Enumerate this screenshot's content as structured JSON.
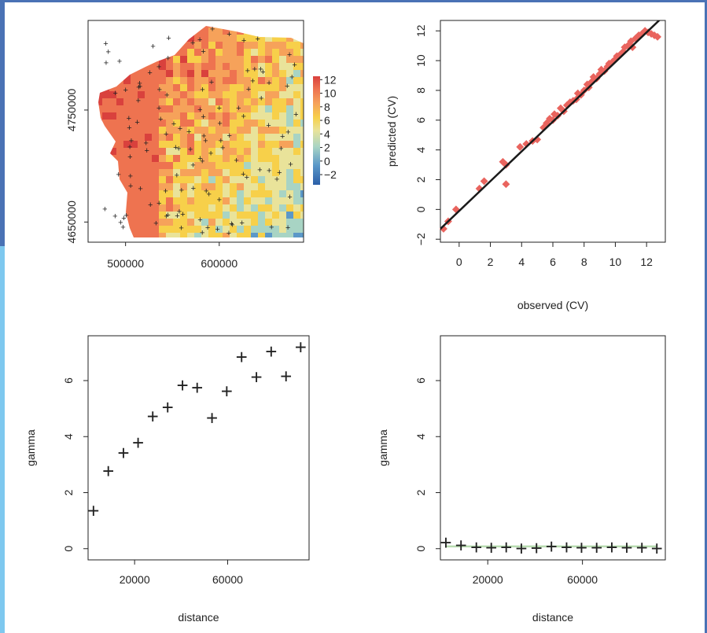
{
  "colors": {
    "window_frame": "#4a72b5",
    "frame_light": "#7ec8ef"
  },
  "chart_data": [
    {
      "type": "heatmap",
      "title": "",
      "x_ticks": [
        500000,
        600000
      ],
      "y_ticks": [
        4650000,
        4750000
      ],
      "colorbar_ticks": [
        12,
        10,
        8,
        6,
        4,
        2,
        0,
        -2
      ],
      "colorbar_range": [
        -3.5,
        12.5
      ],
      "grid": false,
      "point_marker": "+"
    },
    {
      "type": "scatter",
      "xlabel": "observed (CV)",
      "ylabel": "predicted (CV)",
      "xlim": [
        -1.2,
        13.2
      ],
      "ylim": [
        -2.2,
        12.7
      ],
      "x_ticks": [
        0,
        2,
        4,
        6,
        8,
        10,
        12
      ],
      "y_ticks": [
        -2,
        0,
        2,
        4,
        6,
        8,
        10,
        12
      ],
      "grid": false,
      "points": [
        [
          -1.0,
          -1.3
        ],
        [
          -0.7,
          -0.8
        ],
        [
          -0.2,
          0.0
        ],
        [
          1.3,
          1.4
        ],
        [
          1.6,
          1.9
        ],
        [
          2.8,
          3.2
        ],
        [
          3.0,
          3.0
        ],
        [
          3.0,
          1.7
        ],
        [
          3.9,
          4.2
        ],
        [
          4.3,
          4.4
        ],
        [
          4.7,
          4.6
        ],
        [
          5.0,
          4.7
        ],
        [
          5.4,
          5.5
        ],
        [
          5.6,
          5.8
        ],
        [
          5.8,
          6.1
        ],
        [
          6.0,
          6.0
        ],
        [
          6.1,
          6.4
        ],
        [
          6.3,
          6.3
        ],
        [
          6.5,
          6.8
        ],
        [
          6.7,
          6.6
        ],
        [
          6.9,
          7.0
        ],
        [
          7.1,
          7.2
        ],
        [
          7.3,
          7.3
        ],
        [
          7.5,
          7.4
        ],
        [
          7.6,
          7.8
        ],
        [
          7.8,
          7.7
        ],
        [
          8.0,
          8.0
        ],
        [
          8.2,
          8.4
        ],
        [
          8.3,
          8.2
        ],
        [
          8.5,
          8.6
        ],
        [
          8.6,
          8.9
        ],
        [
          8.8,
          8.8
        ],
        [
          9.0,
          9.1
        ],
        [
          9.1,
          9.4
        ],
        [
          9.3,
          9.3
        ],
        [
          9.5,
          9.6
        ],
        [
          9.6,
          9.8
        ],
        [
          9.8,
          9.9
        ],
        [
          10.0,
          10.1
        ],
        [
          10.1,
          10.3
        ],
        [
          10.3,
          10.4
        ],
        [
          10.5,
          10.6
        ],
        [
          10.6,
          10.9
        ],
        [
          10.8,
          11.0
        ],
        [
          11.0,
          11.3
        ],
        [
          11.1,
          10.9
        ],
        [
          11.3,
          11.5
        ],
        [
          11.5,
          11.7
        ],
        [
          11.7,
          11.8
        ],
        [
          11.9,
          12.0
        ],
        [
          12.1,
          11.9
        ],
        [
          12.3,
          11.8
        ],
        [
          12.5,
          11.7
        ],
        [
          12.7,
          11.6
        ]
      ],
      "regression_line": {
        "slope": 1.0,
        "intercept": -0.1
      }
    },
    {
      "type": "scatter",
      "xlabel": "distance",
      "ylabel": "gamma",
      "xlim": [
        0,
        95000
      ],
      "ylim": [
        -0.4,
        7.6
      ],
      "x_ticks": [
        20000,
        60000
      ],
      "y_ticks": [
        0,
        2,
        4,
        6
      ],
      "grid": false,
      "marker": "+",
      "points": [
        [
          2300,
          1.35
        ],
        [
          8700,
          2.77
        ],
        [
          15200,
          3.42
        ],
        [
          21500,
          3.78
        ],
        [
          27800,
          4.72
        ],
        [
          34200,
          5.05
        ],
        [
          40600,
          5.83
        ],
        [
          46900,
          5.75
        ],
        [
          53300,
          4.67
        ],
        [
          59600,
          5.62
        ],
        [
          66000,
          6.84
        ],
        [
          72400,
          6.12
        ],
        [
          78700,
          7.04
        ],
        [
          85100,
          6.15
        ],
        [
          91400,
          7.2
        ]
      ]
    },
    {
      "type": "scatter",
      "xlabel": "distance",
      "ylabel": "gamma",
      "xlim": [
        0,
        95000
      ],
      "ylim": [
        -0.4,
        7.6
      ],
      "x_ticks": [
        20000,
        60000
      ],
      "y_ticks": [
        0,
        2,
        4,
        6
      ],
      "grid": false,
      "marker": "+",
      "points": [
        [
          2300,
          0.22
        ],
        [
          8700,
          0.12
        ],
        [
          15200,
          0.05
        ],
        [
          21500,
          0.04
        ],
        [
          27800,
          0.05
        ],
        [
          34200,
          0.01
        ],
        [
          40600,
          0.02
        ],
        [
          46900,
          0.08
        ],
        [
          53300,
          0.05
        ],
        [
          59600,
          0.04
        ],
        [
          66000,
          0.04
        ],
        [
          72400,
          0.05
        ],
        [
          78700,
          0.03
        ],
        [
          85100,
          0.03
        ],
        [
          91400,
          0.01
        ]
      ],
      "fitted_line_value": 0.08
    }
  ]
}
